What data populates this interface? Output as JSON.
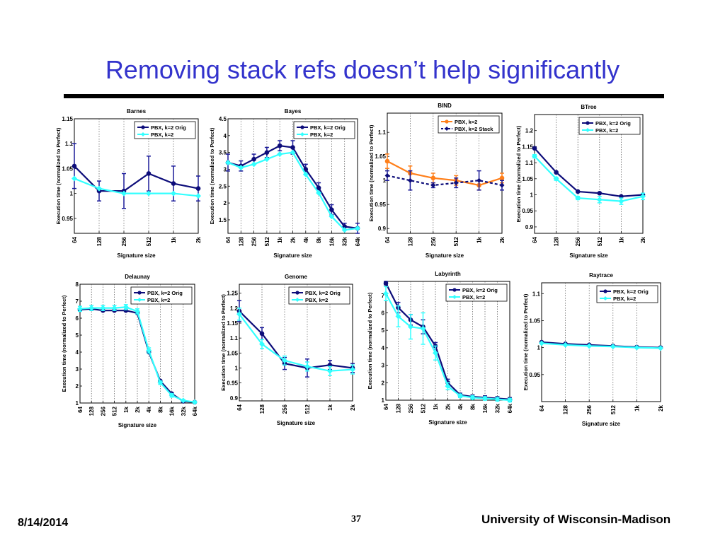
{
  "slide": {
    "title": "Removing stack refs doesn’t help significantly",
    "date": "8/14/2014",
    "page_number": "37",
    "institution": "University of Wisconsin-Madison"
  },
  "colors": {
    "orig": "#0d0d7a",
    "stack": "#0d0d7a",
    "k2": "#33ffff",
    "k2_orange": "#ff7f1a",
    "error": "#1a1a99"
  },
  "chart_data": [
    {
      "type": "line",
      "title": "Barnes",
      "xlabel": "Signature size",
      "ylabel": "Execution time (normalized to Perfect)",
      "x": [
        "64",
        "128",
        "256",
        "512",
        "1k",
        "2k"
      ],
      "ylim": [
        0.92,
        1.15
      ],
      "yticks": [
        "0.95",
        "1",
        "1.05",
        "1.1",
        "1.15"
      ],
      "grid": "vertical-dotted",
      "legend": "top-right",
      "series": [
        {
          "name": "PBX, k=2 Orig",
          "values": [
            1.055,
            1.005,
            1.005,
            1.04,
            1.02,
            1.01
          ],
          "err": [
            0.045,
            0.02,
            0.035,
            0.035,
            0.035,
            0.025
          ],
          "style": "orig"
        },
        {
          "name": "PBX, k=2",
          "values": [
            1.03,
            1.01,
            1.0,
            1.0,
            1.0,
            0.995
          ],
          "style": "k2"
        }
      ]
    },
    {
      "type": "line",
      "title": "Bayes",
      "xlabel": "Signature size",
      "ylabel": "Execution time (normalized to Perfect)",
      "x": [
        "64",
        "128",
        "256",
        "512",
        "1k",
        "2k",
        "4k",
        "8k",
        "16k",
        "32k",
        "64k"
      ],
      "ylim": [
        1.1,
        4.5
      ],
      "yticks": [
        "1.5",
        "2",
        "2.5",
        "3",
        "3.5",
        "4",
        "4.5"
      ],
      "grid": "vertical-dotted",
      "legend": "top-right",
      "series": [
        {
          "name": "PBX, k=2 Orig",
          "values": [
            3.2,
            3.1,
            3.3,
            3.5,
            3.7,
            3.65,
            3.0,
            2.45,
            1.8,
            1.3,
            1.25
          ],
          "err": [
            0.25,
            0.15,
            0.15,
            0.15,
            0.15,
            0.2,
            0.15,
            0.15,
            0.15,
            0.1,
            0.15
          ],
          "style": "orig"
        },
        {
          "name": "PBX, k=2",
          "values": [
            3.2,
            3.05,
            3.15,
            3.3,
            3.45,
            3.5,
            2.85,
            2.3,
            1.6,
            1.2,
            1.25
          ],
          "style": "k2"
        }
      ]
    },
    {
      "type": "line",
      "title": "BIND",
      "xlabel": "Signature size",
      "ylabel": "Execution time (normalized to Perfect)",
      "x": [
        "64",
        "128",
        "256",
        "512",
        "1k",
        "2k"
      ],
      "ylim": [
        0.89,
        1.14
      ],
      "yticks": [
        "0.9",
        "0.95",
        "1",
        "1.05",
        "1.1"
      ],
      "grid": "vertical-dotted",
      "legend": "top-right",
      "series": [
        {
          "name": "PBX, k=2",
          "values": [
            1.04,
            1.015,
            1.005,
            1.0,
            0.99,
            1.005
          ],
          "err": [
            0.015,
            0.015,
            0.01,
            0.01,
            0.01,
            0.01
          ],
          "style": "k2_orange"
        },
        {
          "name": "PBX, k=2 Stack",
          "values": [
            1.01,
            1.0,
            0.99,
            0.995,
            1.0,
            0.99
          ],
          "err": [
            0.01,
            0.02,
            0.005,
            0.01,
            0.02,
            0.01
          ],
          "style": "stack"
        }
      ]
    },
    {
      "type": "line",
      "title": "BTree",
      "xlabel": "Signature size",
      "ylabel": "Execution time (normalized to Perfect)",
      "x": [
        "64",
        "128",
        "256",
        "512",
        "1k",
        "2k"
      ],
      "ylim": [
        0.88,
        1.25
      ],
      "yticks": [
        "0.9",
        "0.95",
        "1",
        "1.05",
        "1.1",
        "1.15",
        "1.2"
      ],
      "grid": "vertical-dotted",
      "legend": "top-right",
      "series": [
        {
          "name": "PBX, k=2 Orig",
          "values": [
            1.145,
            1.07,
            1.01,
            1.005,
            0.995,
            1.0
          ],
          "style": "orig"
        },
        {
          "name": "PBX, k=2",
          "values": [
            1.12,
            1.05,
            0.99,
            0.985,
            0.98,
            0.995
          ],
          "err": [
            0.005,
            0.005,
            0.005,
            0.01,
            0.01,
            0.01
          ],
          "style": "k2"
        }
      ]
    },
    {
      "type": "line",
      "title": "Delaunay",
      "xlabel": "Signature size",
      "ylabel": "Execution time (normalized to Perfect)",
      "x": [
        "64",
        "128",
        "256",
        "512",
        "1k",
        "2k",
        "4k",
        "8k",
        "16k",
        "32k",
        "64k"
      ],
      "ylim": [
        1,
        8
      ],
      "yticks": [
        "1",
        "2",
        "3",
        "4",
        "5",
        "6",
        "7",
        "8"
      ],
      "grid": "vertical-dotted",
      "legend": "top-right",
      "series": [
        {
          "name": "PBX, k=2 Orig",
          "values": [
            6.5,
            6.55,
            6.45,
            6.45,
            6.45,
            6.3,
            4.0,
            2.3,
            1.55,
            1.1,
            1.05
          ],
          "style": "orig"
        },
        {
          "name": "PBX, k=2",
          "values": [
            6.55,
            6.6,
            6.6,
            6.6,
            6.65,
            6.4,
            4.1,
            2.2,
            1.45,
            1.15,
            1.05
          ],
          "err": [
            0.15,
            0.15,
            0.15,
            0.15,
            0.15,
            0.15,
            0.15,
            0.1,
            0.1,
            0.05,
            0.05
          ],
          "style": "k2"
        }
      ]
    },
    {
      "type": "line",
      "title": "Genome",
      "xlabel": "Signature size",
      "ylabel": "Execution time (normalized to Perfect)",
      "x": [
        "64",
        "128",
        "256",
        "512",
        "1k",
        "2k"
      ],
      "ylim": [
        0.89,
        1.28
      ],
      "yticks": [
        "0.9",
        "0.95",
        "1",
        "1.05",
        "1.1",
        "1.15",
        "1.2",
        "1.25"
      ],
      "grid": "vertical-dotted",
      "legend": "top-right",
      "series": [
        {
          "name": "PBX, k=2 Orig",
          "values": [
            1.19,
            1.115,
            1.015,
            1.0,
            1.01,
            1.0
          ],
          "err": [
            0.035,
            0.02,
            0.02,
            0.03,
            0.015,
            0.015
          ],
          "style": "orig"
        },
        {
          "name": "PBX, k=2",
          "values": [
            1.18,
            1.08,
            1.025,
            1.005,
            0.99,
            0.995
          ],
          "err": [
            0.02,
            0.015,
            0.015,
            0.015,
            0.015,
            0.015
          ],
          "style": "k2"
        }
      ]
    },
    {
      "type": "line",
      "title": "Labyrinth",
      "xlabel": "Signature size",
      "ylabel": "Execution time (normalized to Perfect)",
      "x": [
        "64",
        "128",
        "256",
        "512",
        "1k",
        "2k",
        "4k",
        "8k",
        "16k",
        "32k",
        "64k"
      ],
      "ylim": [
        1,
        7.8
      ],
      "yticks": [
        "1",
        "2",
        "3",
        "4",
        "5",
        "6",
        "7"
      ],
      "grid": "vertical-dotted",
      "legend": "top-right",
      "series": [
        {
          "name": "PBX, k=2 Orig",
          "values": [
            7.7,
            6.3,
            5.6,
            5.2,
            4.1,
            2.0,
            1.3,
            1.2,
            1.15,
            1.1,
            1.05
          ],
          "err": [
            0.1,
            0.3,
            0.3,
            0.4,
            0.2,
            0.2,
            0.1,
            0.1,
            0.1,
            0.1,
            0.1
          ],
          "style": "orig"
        },
        {
          "name": "PBX, k=2",
          "values": [
            7.1,
            5.8,
            5.2,
            5.1,
            3.7,
            1.8,
            1.25,
            1.15,
            1.1,
            1.05,
            1.0
          ],
          "err": [
            0.4,
            0.6,
            0.7,
            0.9,
            0.4,
            0.2,
            0.1,
            0.1,
            0.1,
            0.1,
            0.1
          ],
          "style": "k2"
        }
      ]
    },
    {
      "type": "line",
      "title": "Raytrace",
      "xlabel": "Signature size",
      "ylabel": "Execution time (normalized to Perfect)",
      "x": [
        "64",
        "128",
        "256",
        "512",
        "1k",
        "2k"
      ],
      "ylim": [
        0.9,
        1.12
      ],
      "yticks": [
        "0.95",
        "1",
        "1.05",
        "1.1"
      ],
      "grid": "vertical-dotted",
      "legend": "top-right",
      "series": [
        {
          "name": "PBX, k=2 Orig",
          "values": [
            1.01,
            1.007,
            1.005,
            1.003,
            1.001,
            1.0
          ],
          "style": "orig"
        },
        {
          "name": "PBX, k=2",
          "values": [
            1.008,
            1.005,
            1.003,
            1.002,
            1.0,
            0.999
          ],
          "style": "k2"
        }
      ]
    }
  ]
}
